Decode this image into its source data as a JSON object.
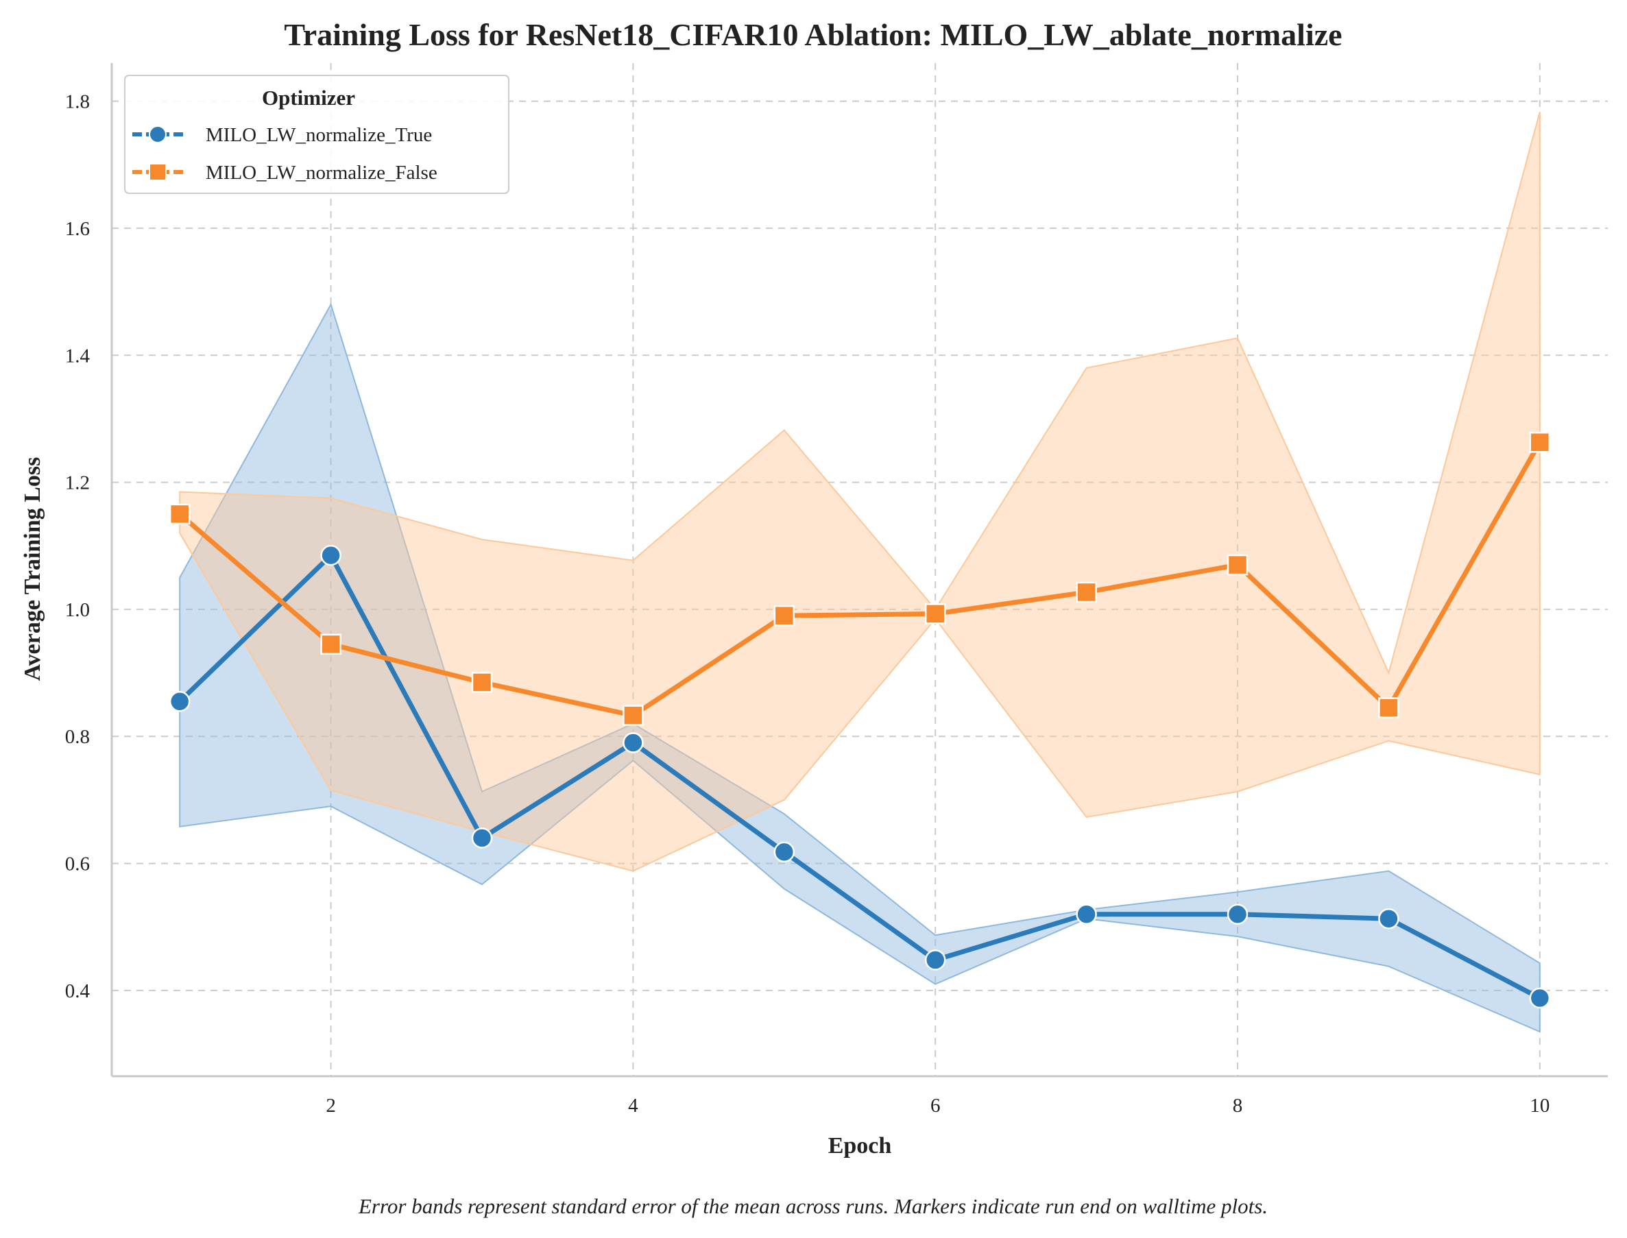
{
  "chart_data": {
    "type": "line",
    "title": "Training Loss for ResNet18_CIFAR10 Ablation: MILO_LW_ablate_normalize",
    "xlabel": "Epoch",
    "ylabel": "Average Training Loss",
    "caption": "Error bands represent standard error of the mean across runs. Markers indicate run end on walltime plots.",
    "x": [
      1,
      2,
      3,
      4,
      5,
      6,
      7,
      8,
      9,
      10
    ],
    "xlim": [
      0.55,
      10.45
    ],
    "ylim": [
      0.265,
      1.86
    ],
    "xticks": [
      2,
      4,
      6,
      8,
      10
    ],
    "yticks": [
      0.4,
      0.6,
      0.8,
      1.0,
      1.2,
      1.4,
      1.6,
      1.8
    ],
    "grid": true,
    "legend": {
      "title": "Optimizer",
      "position": "top-left"
    },
    "series": [
      {
        "name": "MILO_LW_normalize_True",
        "color": "#2b7bba",
        "band_color": "#8fb8dd",
        "marker": "circle",
        "values": [
          0.855,
          1.085,
          0.64,
          0.79,
          0.618,
          0.448,
          0.52,
          0.52,
          0.513,
          0.388
        ],
        "lower": [
          0.658,
          0.69,
          0.567,
          0.762,
          0.56,
          0.41,
          0.513,
          0.485,
          0.438,
          0.335
        ],
        "upper": [
          1.05,
          1.48,
          0.713,
          0.82,
          0.678,
          0.487,
          0.527,
          0.555,
          0.588,
          0.443
        ]
      },
      {
        "name": "MILO_LW_normalize_False",
        "color": "#f7882b",
        "band_color": "#fdc89a",
        "marker": "square",
        "values": [
          1.15,
          0.945,
          0.885,
          0.833,
          0.99,
          0.993,
          1.027,
          1.07,
          0.845,
          1.263
        ],
        "lower": [
          1.12,
          0.715,
          0.65,
          0.588,
          0.7,
          0.985,
          0.673,
          0.713,
          0.793,
          0.74
        ],
        "upper": [
          1.185,
          1.175,
          1.11,
          1.077,
          1.282,
          1.0,
          1.38,
          1.427,
          0.9,
          1.783
        ]
      }
    ]
  }
}
